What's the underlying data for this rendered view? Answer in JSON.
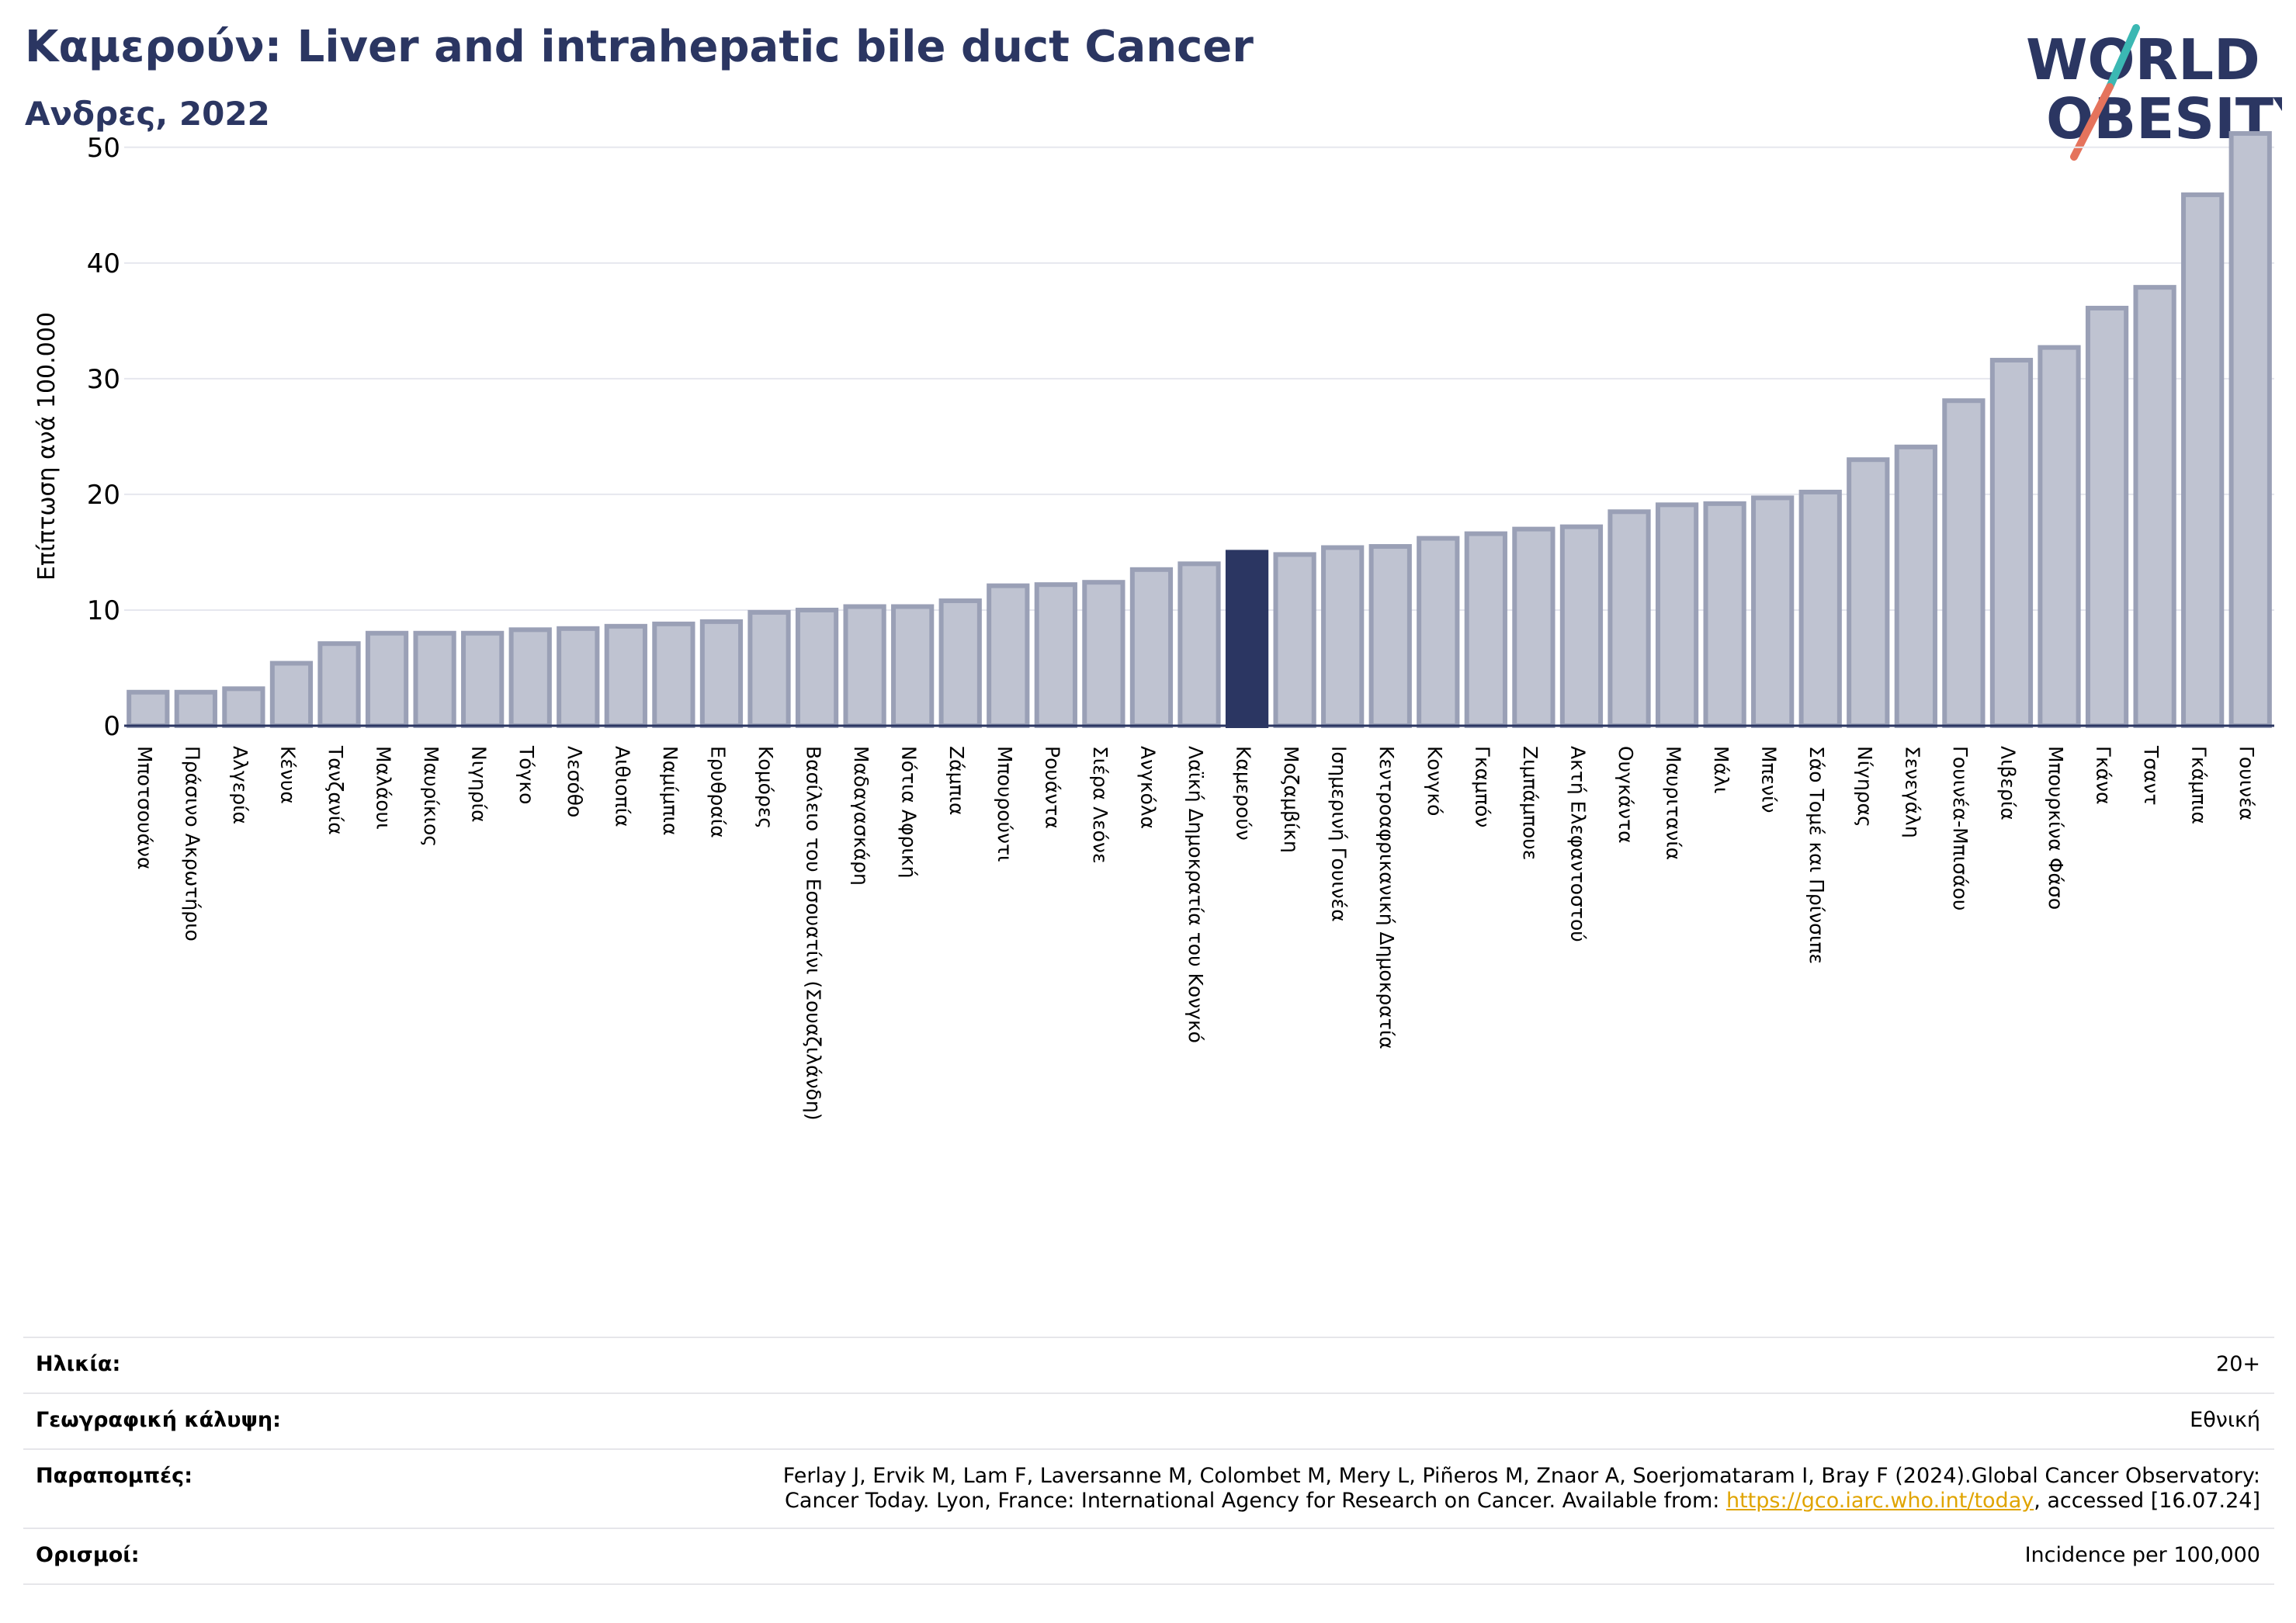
{
  "header": {
    "title": "Καμερούν: Liver and intrahepatic bile duct Cancer",
    "subtitle": "Ανδρες, 2022"
  },
  "logo": {
    "line1": "WORLD",
    "line2": "OBESITY",
    "colors": {
      "navy": "#2b3662",
      "teal": "#3bb8b3",
      "coral": "#e5735c"
    }
  },
  "chart_data": {
    "type": "bar",
    "ylabel": "Επίπτωση ανά 100.000",
    "ylim": [
      0,
      52
    ],
    "yticks": [
      0,
      10,
      20,
      30,
      40,
      50
    ],
    "grid": true,
    "highlight": "Καμερούν",
    "colors": {
      "bar": "#bfc3d1",
      "bar_edge": "#9aa0b6",
      "highlight": "#2b3662"
    },
    "categories": [
      "Μποτσουάνα",
      "Πράσινο Ακρωτήριο",
      "Αλγερία",
      "Κένυα",
      "Τανζανία",
      "Μαλάουι",
      "Μαυρίκιος",
      "Νιγηρία",
      "Τόγκο",
      "Λεσόθο",
      "Αιθιοπία",
      "Ναμίμπια",
      "Ερυθραία",
      "Κομόρες",
      "Βασίλειο του Εσουατίνι (Σουαζιλάνδη)",
      "Μαδαγασκάρη",
      "Νότια Αφρική",
      "Ζάμπια",
      "Μπουρούντι",
      "Ρουάντα",
      "Σιέρα Λεόνε",
      "Ανγκόλα",
      "Λαϊκή Δημοκρατία του Κονγκό",
      "Καμερούν",
      "Μοζαμβίκη",
      "Ισημερινή Γουινέα",
      "Κεντροαφρικανική Δημοκρατία",
      "Κονγκό",
      "Γκαμπόν",
      "Ζιμπάμπουε",
      "Ακτή Ελεφαντοστού",
      "Ουγκάντα",
      "Μαυριτανία",
      "Μάλι",
      "Μπενίν",
      "Σάο Τομέ και Πρίνσιπε",
      "Νίγηρας",
      "Σενεγάλη",
      "Γουινέα-Μπισάου",
      "Λιβερία",
      "Μπουρκίνα Φάσο",
      "Γκάνα",
      "Τσαντ",
      "Γκάμπια",
      "Γουινέα"
    ],
    "values": [
      2.9,
      2.9,
      3.2,
      5.4,
      7.1,
      8.0,
      8.0,
      8.0,
      8.3,
      8.4,
      8.6,
      8.8,
      9.0,
      9.8,
      10.0,
      10.3,
      10.3,
      10.8,
      12.1,
      12.2,
      12.4,
      13.5,
      14.0,
      15.0,
      14.8,
      15.4,
      15.5,
      16.2,
      16.6,
      17.0,
      17.2,
      18.5,
      19.1,
      19.2,
      19.7,
      20.2,
      23.0,
      24.1,
      28.1,
      31.6,
      32.7,
      36.1,
      37.9,
      45.9,
      51.2
    ]
  },
  "info": {
    "age_label": "Ηλικία:",
    "age_value": "20+",
    "coverage_label": "Γεωγραφική κάλυψη:",
    "coverage_value": "Εθνική",
    "references_label": "Παραπομπές:",
    "references_line1": "Ferlay J, Ervik M, Lam F, Laversanne M, Colombet M, Mery L, Piñeros M, Znaor A, Soerjomataram I, Bray F (2024).Global Cancer Observatory:",
    "references_line2_pre": "Cancer Today. Lyon, France: International Agency for Research on Cancer. Available from: ",
    "references_link": "https://gco.iarc.who.int/today",
    "references_line2_post": ", accessed [16.07.24]",
    "definitions_label": "Ορισμοί:",
    "definitions_value": "Incidence per 100,000"
  }
}
